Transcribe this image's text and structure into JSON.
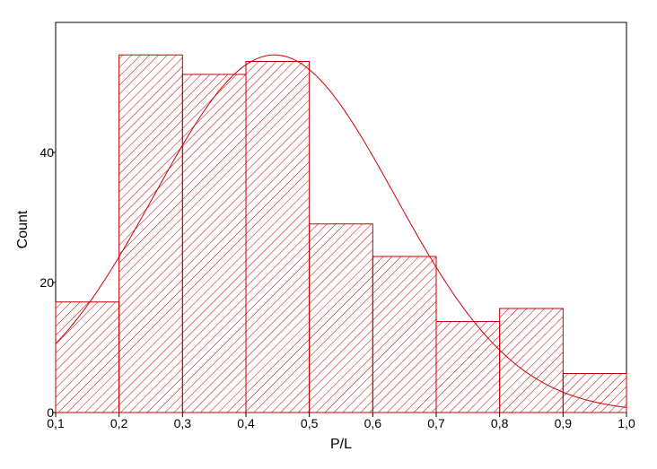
{
  "chart_data": {
    "type": "bar",
    "subtype": "histogram",
    "bins": [
      {
        "start": 0.1,
        "end": 0.2,
        "count": 17
      },
      {
        "start": 0.2,
        "end": 0.3,
        "count": 55
      },
      {
        "start": 0.3,
        "end": 0.4,
        "count": 52
      },
      {
        "start": 0.4,
        "end": 0.5,
        "count": 54
      },
      {
        "start": 0.5,
        "end": 0.6,
        "count": 29
      },
      {
        "start": 0.6,
        "end": 0.7,
        "count": 24
      },
      {
        "start": 0.7,
        "end": 0.8,
        "count": 14
      },
      {
        "start": 0.8,
        "end": 0.9,
        "count": 16
      },
      {
        "start": 0.9,
        "end": 1.0,
        "count": 6
      }
    ],
    "normal_curve": {
      "mean": 0.445,
      "sd": 0.19,
      "peak": 55
    },
    "xlabel": "P/L",
    "ylabel": "Count",
    "xlim": [
      0.1,
      1.0
    ],
    "ylim": [
      0,
      60
    ],
    "xticks": [
      {
        "value": 0.1,
        "label": "0,1"
      },
      {
        "value": 0.2,
        "label": "0,2"
      },
      {
        "value": 0.3,
        "label": "0,3"
      },
      {
        "value": 0.4,
        "label": "0,4"
      },
      {
        "value": 0.5,
        "label": "0,5"
      },
      {
        "value": 0.6,
        "label": "0,6"
      },
      {
        "value": 0.7,
        "label": "0,7"
      },
      {
        "value": 0.8,
        "label": "0,8"
      },
      {
        "value": 0.9,
        "label": "0,9"
      },
      {
        "value": 1.0,
        "label": "1,0"
      }
    ],
    "yticks": [
      {
        "value": 0,
        "label": "0"
      },
      {
        "value": 20,
        "label": "20"
      },
      {
        "value": 40,
        "label": "40"
      }
    ],
    "grid": false,
    "legend": "none",
    "colors": {
      "bar": "#c00000",
      "curve": "#cc0000",
      "frame": "#000000"
    }
  }
}
